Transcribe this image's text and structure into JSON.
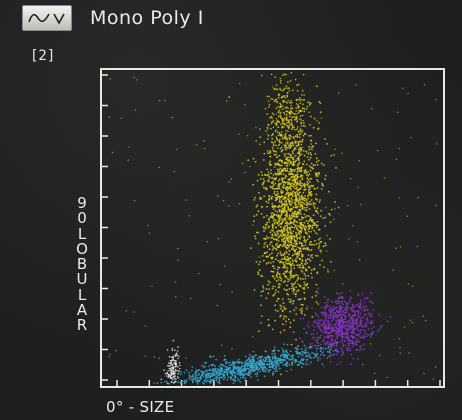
{
  "header": {
    "plot_type_icon": "histogram-wave-dropdown-icon",
    "title": "Mono Poly I"
  },
  "plot_index": "[2]",
  "axes": {
    "y_label": "90 LOBULAR",
    "x_label": "0° - SIZE"
  },
  "colors": {
    "background": "#1e1f1e",
    "axis": "#e8e8e4",
    "monocytes": "#d9cd1c",
    "granulocytes": "#8a32c9",
    "lymphocytes": "#34a9d4",
    "debris": "#e8e8e8",
    "scatter_dots": "#d8d86a"
  }
}
